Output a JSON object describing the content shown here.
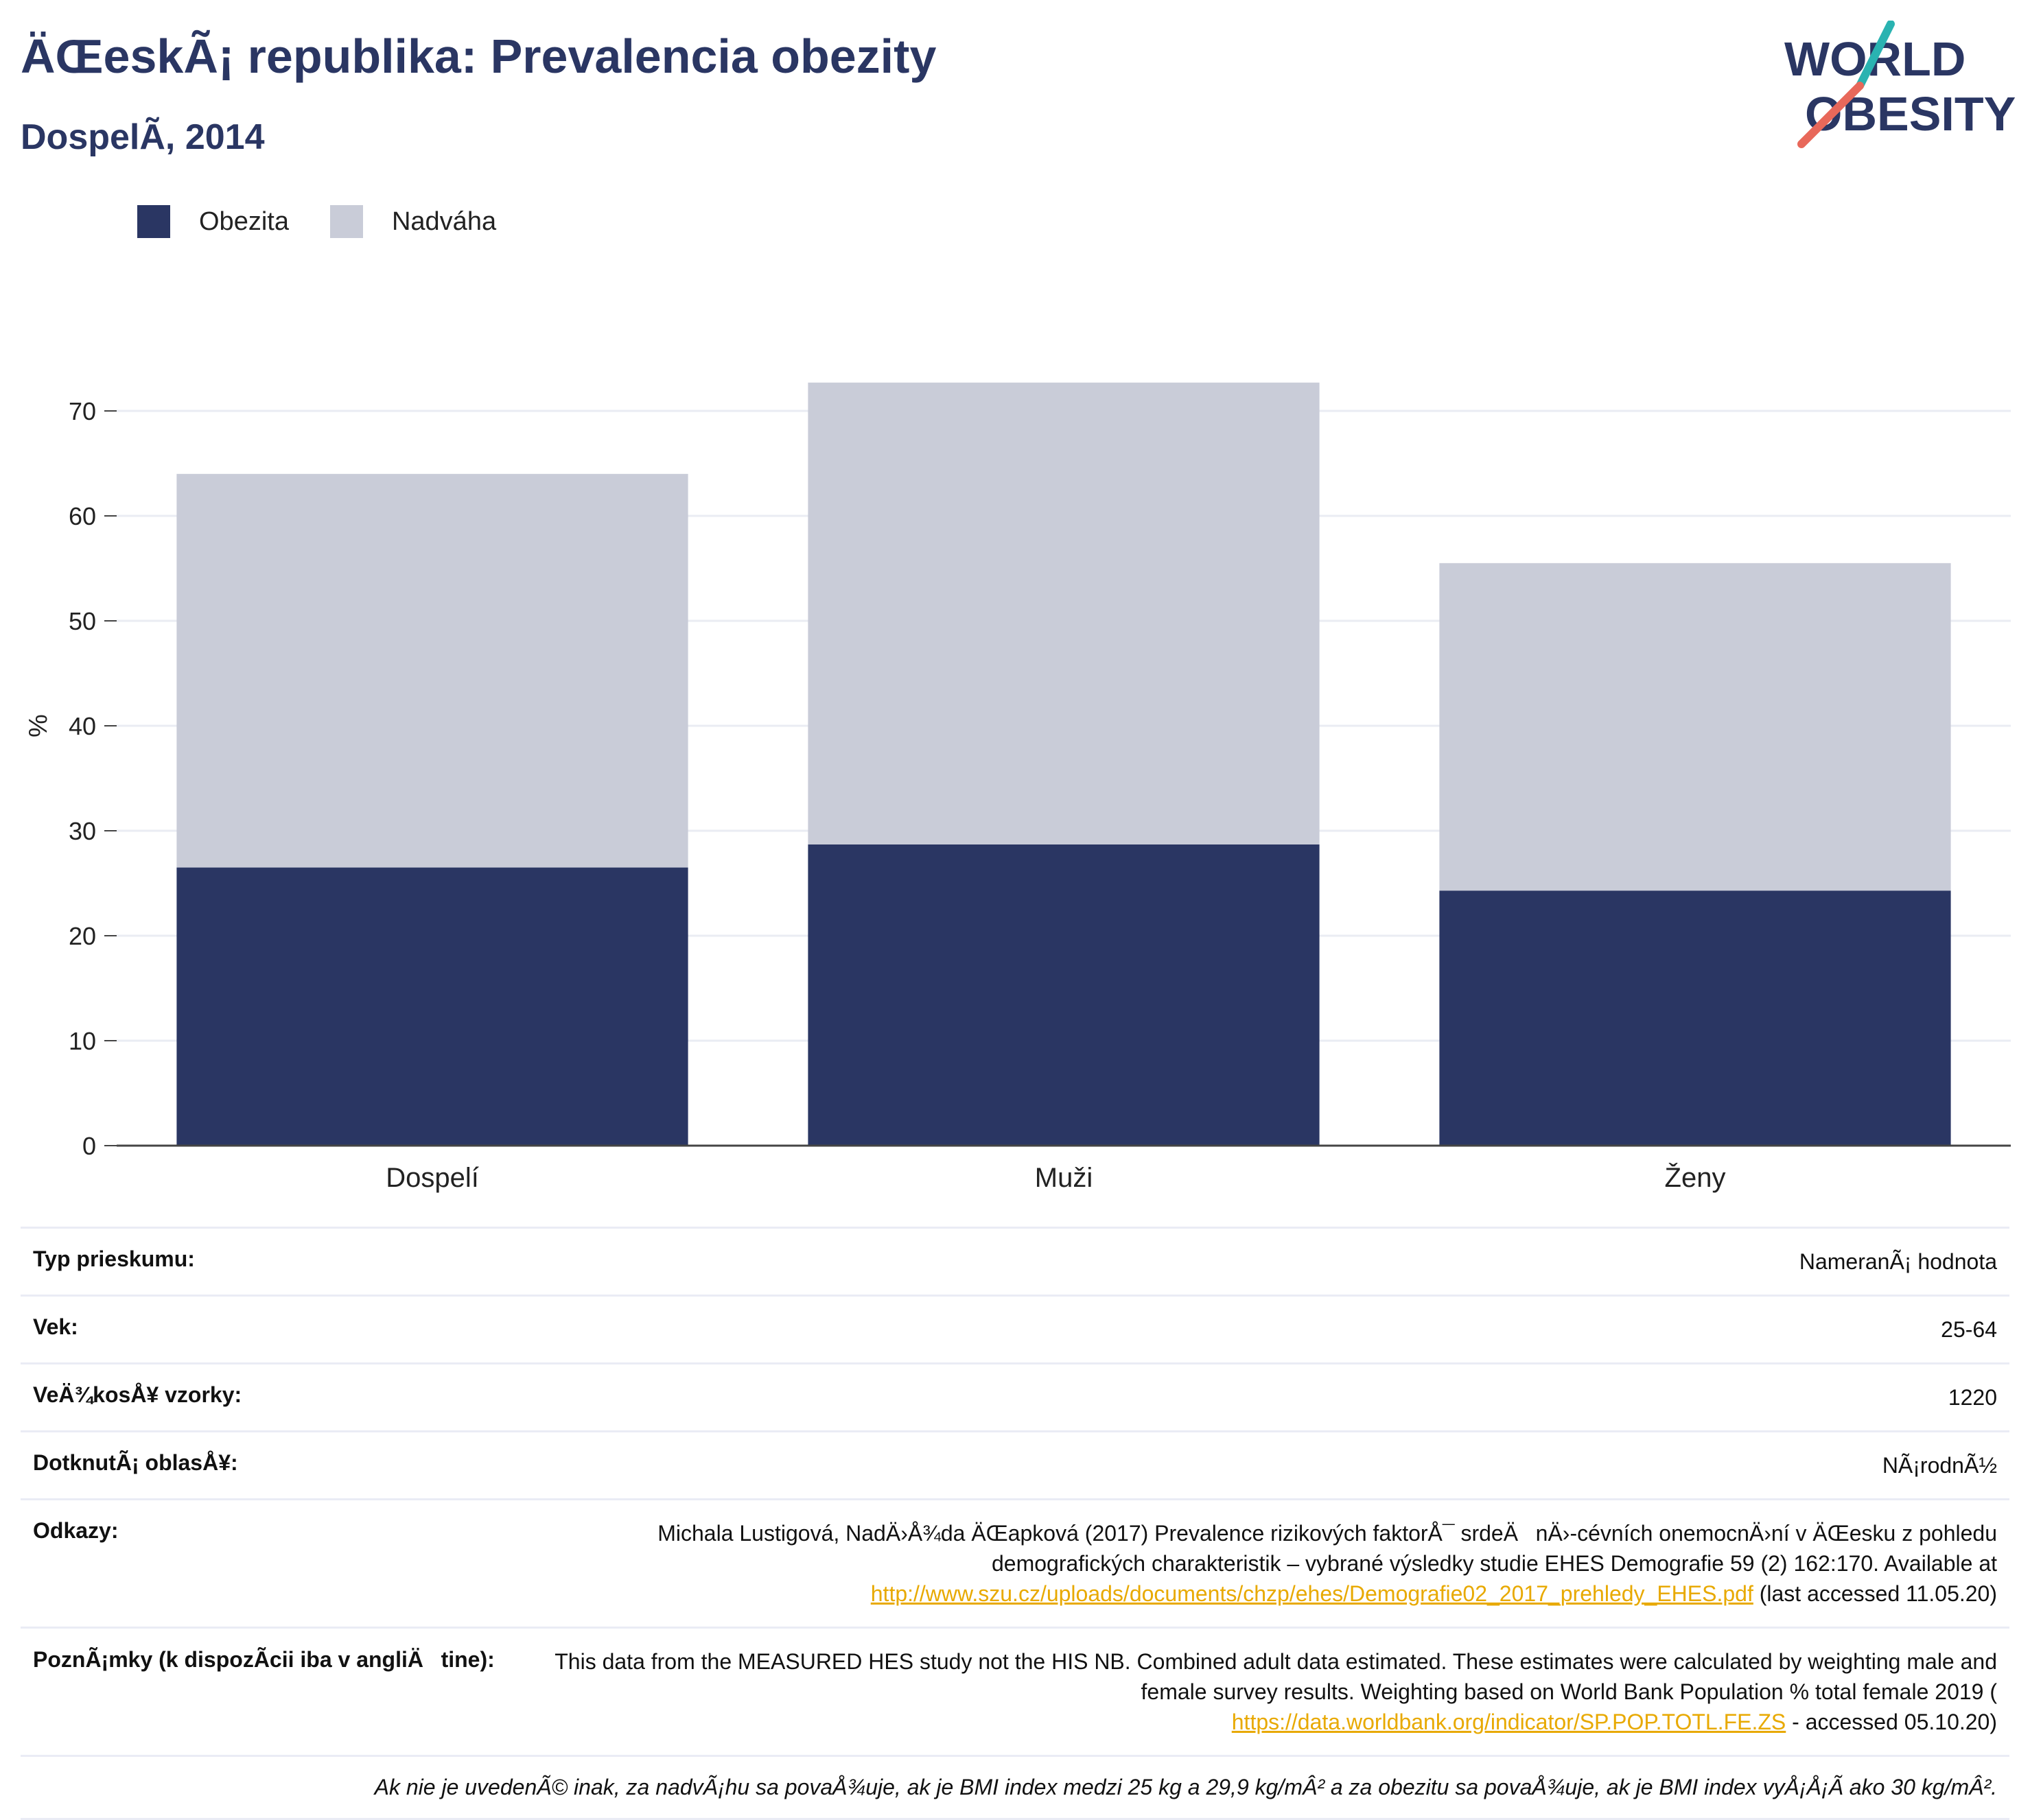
{
  "header": {
    "title": "ÄŒeskÃ¡ republika: Prevalencia obezity",
    "subtitle": "DospelÃ­, 2014",
    "logo_text": [
      "WORLD",
      "OBESITY"
    ]
  },
  "colors": {
    "title": "#2a3663",
    "obesity": "#2a3663",
    "overweight": "#c9ccd8",
    "link": "#e8a900"
  },
  "legend": [
    {
      "label": "Obezita",
      "color": "#2a3663"
    },
    {
      "label": "Nadváha",
      "color": "#c9ccd8"
    }
  ],
  "chart_data": {
    "type": "bar",
    "stacked": true,
    "categories": [
      "Dospelí",
      "Muži",
      "Ženy"
    ],
    "series": [
      {
        "name": "Obezita",
        "values": [
          26.5,
          28.7,
          24.3
        ]
      },
      {
        "name": "Nadváha",
        "values": [
          37.5,
          44.0,
          31.2
        ]
      }
    ],
    "title": "ÄŒeskÃ¡ republika: Prevalencia obezity",
    "subtitle": "DospelÃ­, 2014",
    "ylabel": "%",
    "ylim": [
      0,
      75
    ],
    "yticks": [
      0,
      10,
      20,
      30,
      40,
      50,
      60,
      70
    ],
    "grid": true,
    "legend_position": "top-left"
  },
  "info": {
    "rows": [
      {
        "label": "Typ prieskumu:",
        "value": "NameranÃ¡ hodnota"
      },
      {
        "label": "Vek:",
        "value": "25-64"
      },
      {
        "label": "VeÄ¾kosÅ¥ vzorky:",
        "value": "1220"
      },
      {
        "label": "DotknutÃ¡ oblasÅ¥:",
        "value": "NÃ¡rodnÃ½"
      }
    ],
    "references": {
      "label": "Odkazy:",
      "text": "Michala Lustigová, NadÄ›Å¾da ÄŒapková (2017) Prevalence rizikových faktorÅ¯ srdeÄnÄ›-cévních onemocnÄ›ní v ÄŒesku z pohledu demografických charakteristik – vybrané výsledky studie EHES Demografie 59 (2) 162:170. Available at",
      "link": "http://www.szu.cz/uploads/documents/chzp/ehes/Demografie02_2017_prehledy_EHES.pdf",
      "suffix": "(last accessed 11.05.20)"
    },
    "notes": {
      "label": "PoznÃ¡mky (k dispozÃ­cii iba v angliÄtine):",
      "text": "This data from the MEASURED HES study not the HIS NB. Combined adult data estimated. These estimates were calculated by weighting male and female survey results. Weighting based on World Bank Population % total female 2019 (",
      "link": "https://data.worldbank.org/indicator/SP.POP.TOTL.FE.ZS",
      "suffix": " - accessed 05.10.20)"
    },
    "footnote": "Ak nie je uvedenÃ© inak, za nadvÃ¡hu sa povaÅ¾uje, ak je BMI index medzi 25 kg a 29,9 kg/mÂ² a za obezitu sa povaÅ¾uje, ak je BMI index vyÅ¡Å¡Ã­ ako 30 kg/mÂ²."
  }
}
